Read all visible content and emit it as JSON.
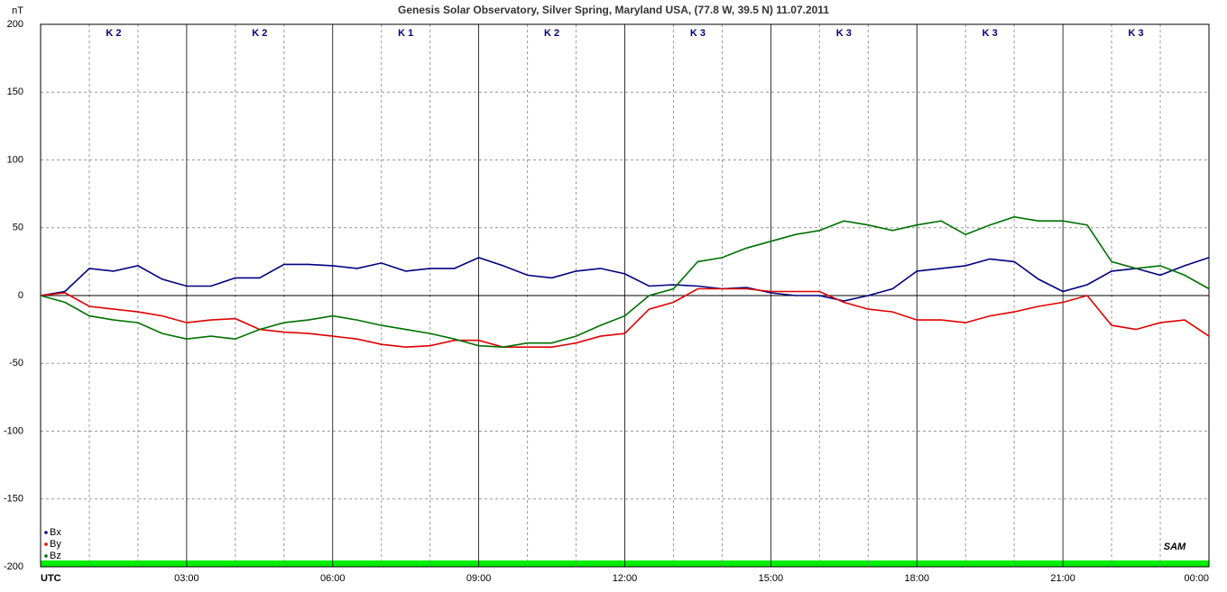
{
  "chart_data": {
    "type": "line",
    "title": "Genesis Solar Observatory, Silver Spring, Maryland USA, (77.8 W, 39.5 N)  11.07.2011",
    "y_label": "nT",
    "xlim": [
      0,
      24
    ],
    "xticks": [
      {
        "value": 0,
        "label": "UTC"
      },
      {
        "value": 3,
        "label": "03:00"
      },
      {
        "value": 6,
        "label": "06:00"
      },
      {
        "value": 9,
        "label": "09:00"
      },
      {
        "value": 12,
        "label": "12:00"
      },
      {
        "value": 15,
        "label": "15:00"
      },
      {
        "value": 18,
        "label": "18:00"
      },
      {
        "value": 21,
        "label": "21:00"
      },
      {
        "value": 24,
        "label": "00:00"
      }
    ],
    "ylim": [
      -200,
      200
    ],
    "yticks": [
      -200,
      -150,
      -100,
      -50,
      0,
      50,
      100,
      150,
      200
    ],
    "grid": true,
    "k_index": {
      "values": [
        2,
        2,
        1,
        2,
        3,
        3,
        3,
        3
      ],
      "value_labels": [
        "K 2",
        "K 2",
        "K 1",
        "K 2",
        "K 3",
        "K 3",
        "K 3",
        "K 3"
      ]
    },
    "logo": "SAM",
    "x": [
      0,
      0.5,
      1,
      1.5,
      2,
      2.5,
      3,
      3.5,
      4,
      4.5,
      5,
      5.5,
      6,
      6.5,
      7,
      7.5,
      8,
      8.5,
      9,
      9.5,
      10,
      10.5,
      11,
      11.5,
      12,
      12.5,
      13,
      13.5,
      14,
      14.5,
      15,
      15.5,
      16,
      16.5,
      17,
      17.5,
      18,
      18.5,
      19,
      19.5,
      20,
      20.5,
      21,
      21.5,
      22,
      22.5,
      23,
      23.5,
      24
    ],
    "series": [
      {
        "name": "Bx",
        "color": "#000080",
        "values": [
          0,
          3,
          20,
          18,
          22,
          12,
          7,
          7,
          13,
          13,
          23,
          23,
          22,
          20,
          24,
          18,
          20,
          20,
          28,
          22,
          15,
          13,
          18,
          20,
          16,
          7,
          8,
          7,
          5,
          6,
          2,
          0,
          0,
          -4,
          0,
          5,
          18,
          20,
          22,
          27,
          25,
          12,
          3,
          8,
          18,
          20,
          15,
          22,
          28
        ]
      },
      {
        "name": "By",
        "color": "#e00000",
        "values": [
          0,
          2,
          -8,
          -10,
          -12,
          -15,
          -20,
          -18,
          -17,
          -25,
          -27,
          -28,
          -30,
          -32,
          -36,
          -38,
          -37,
          -33,
          -33,
          -38,
          -38,
          -38,
          -35,
          -30,
          -28,
          -10,
          -5,
          5,
          5,
          5,
          3,
          3,
          3,
          -5,
          -10,
          -12,
          -18,
          -18,
          -20,
          -15,
          -12,
          -8,
          -5,
          0,
          -22,
          -25,
          -20,
          -18,
          -30
        ]
      },
      {
        "name": "Bz",
        "color": "#007000",
        "values": [
          0,
          -5,
          -15,
          -18,
          -20,
          -28,
          -32,
          -30,
          -32,
          -25,
          -20,
          -18,
          -15,
          -18,
          -22,
          -25,
          -28,
          -32,
          -37,
          -38,
          -35,
          -35,
          -30,
          -22,
          -15,
          0,
          5,
          25,
          28,
          35,
          40,
          45,
          48,
          55,
          52,
          48,
          52,
          55,
          45,
          52,
          58,
          55,
          55,
          52,
          25,
          20,
          22,
          15,
          5
        ]
      }
    ]
  }
}
